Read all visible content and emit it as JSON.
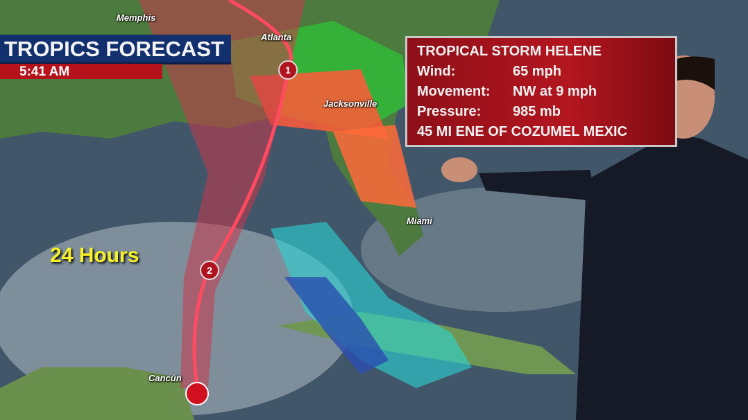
{
  "graphic": {
    "title": "TROPICS FORECAST",
    "time": "5:41 AM",
    "forecast_label": "24 Hours"
  },
  "storm_info": {
    "name": "TROPICAL STORM HELENE",
    "rows": [
      {
        "label": "Wind:",
        "value": "65 mph"
      },
      {
        "label": "Movement:",
        "value": "NW at 9 mph"
      },
      {
        "label": "Pressure:",
        "value": "985 mb"
      }
    ],
    "location": "45 MI ENE OF COZUMEL MEXIC"
  },
  "cities": [
    "Memphis",
    "Atlanta",
    "Jacksonville",
    "Miami",
    "Cancún"
  ],
  "track_markers": [
    "1",
    "2"
  ],
  "colors": {
    "title_bar": "#13306e",
    "time_bar": "#b5121b",
    "info_box": "#b3161f",
    "hours_text": "#f5f02a",
    "cone": "#c8384a"
  }
}
